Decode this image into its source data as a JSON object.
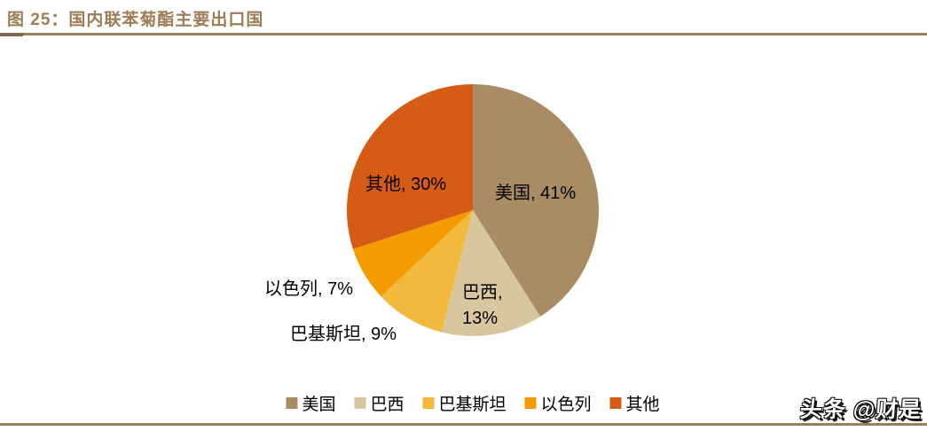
{
  "page": {
    "title": "图 25：国内联苯菊酯主要出口国",
    "watermark": "头条 @财是"
  },
  "colors": {
    "title_text": "#9E7C55",
    "rule": "#9B7D61",
    "rule_cap": "#7F674E",
    "label_text": "#000000"
  },
  "chart_data": {
    "type": "pie",
    "title": "国内联苯菊酯主要出口国",
    "unit": "%",
    "start_angle_deg": 0,
    "direction": "clockwise",
    "legend_position": "bottom",
    "slices": [
      {
        "id": "usa",
        "name": "美国",
        "value": 41,
        "color": "#A98C64",
        "label": "美国, 41%"
      },
      {
        "id": "brazil",
        "name": "巴西",
        "value": 13,
        "color": "#D8C79E",
        "label": "巴西,\n13%"
      },
      {
        "id": "pakistan",
        "name": "巴基斯坦",
        "value": 9,
        "color": "#F2B93D",
        "label": "巴基斯坦, 9%"
      },
      {
        "id": "israel",
        "name": "以色列",
        "value": 7,
        "color": "#F59B00",
        "label": "以色列, 7%"
      },
      {
        "id": "others",
        "name": "其他",
        "value": 30,
        "color": "#D65C15",
        "label": "其他, 30%"
      }
    ]
  }
}
